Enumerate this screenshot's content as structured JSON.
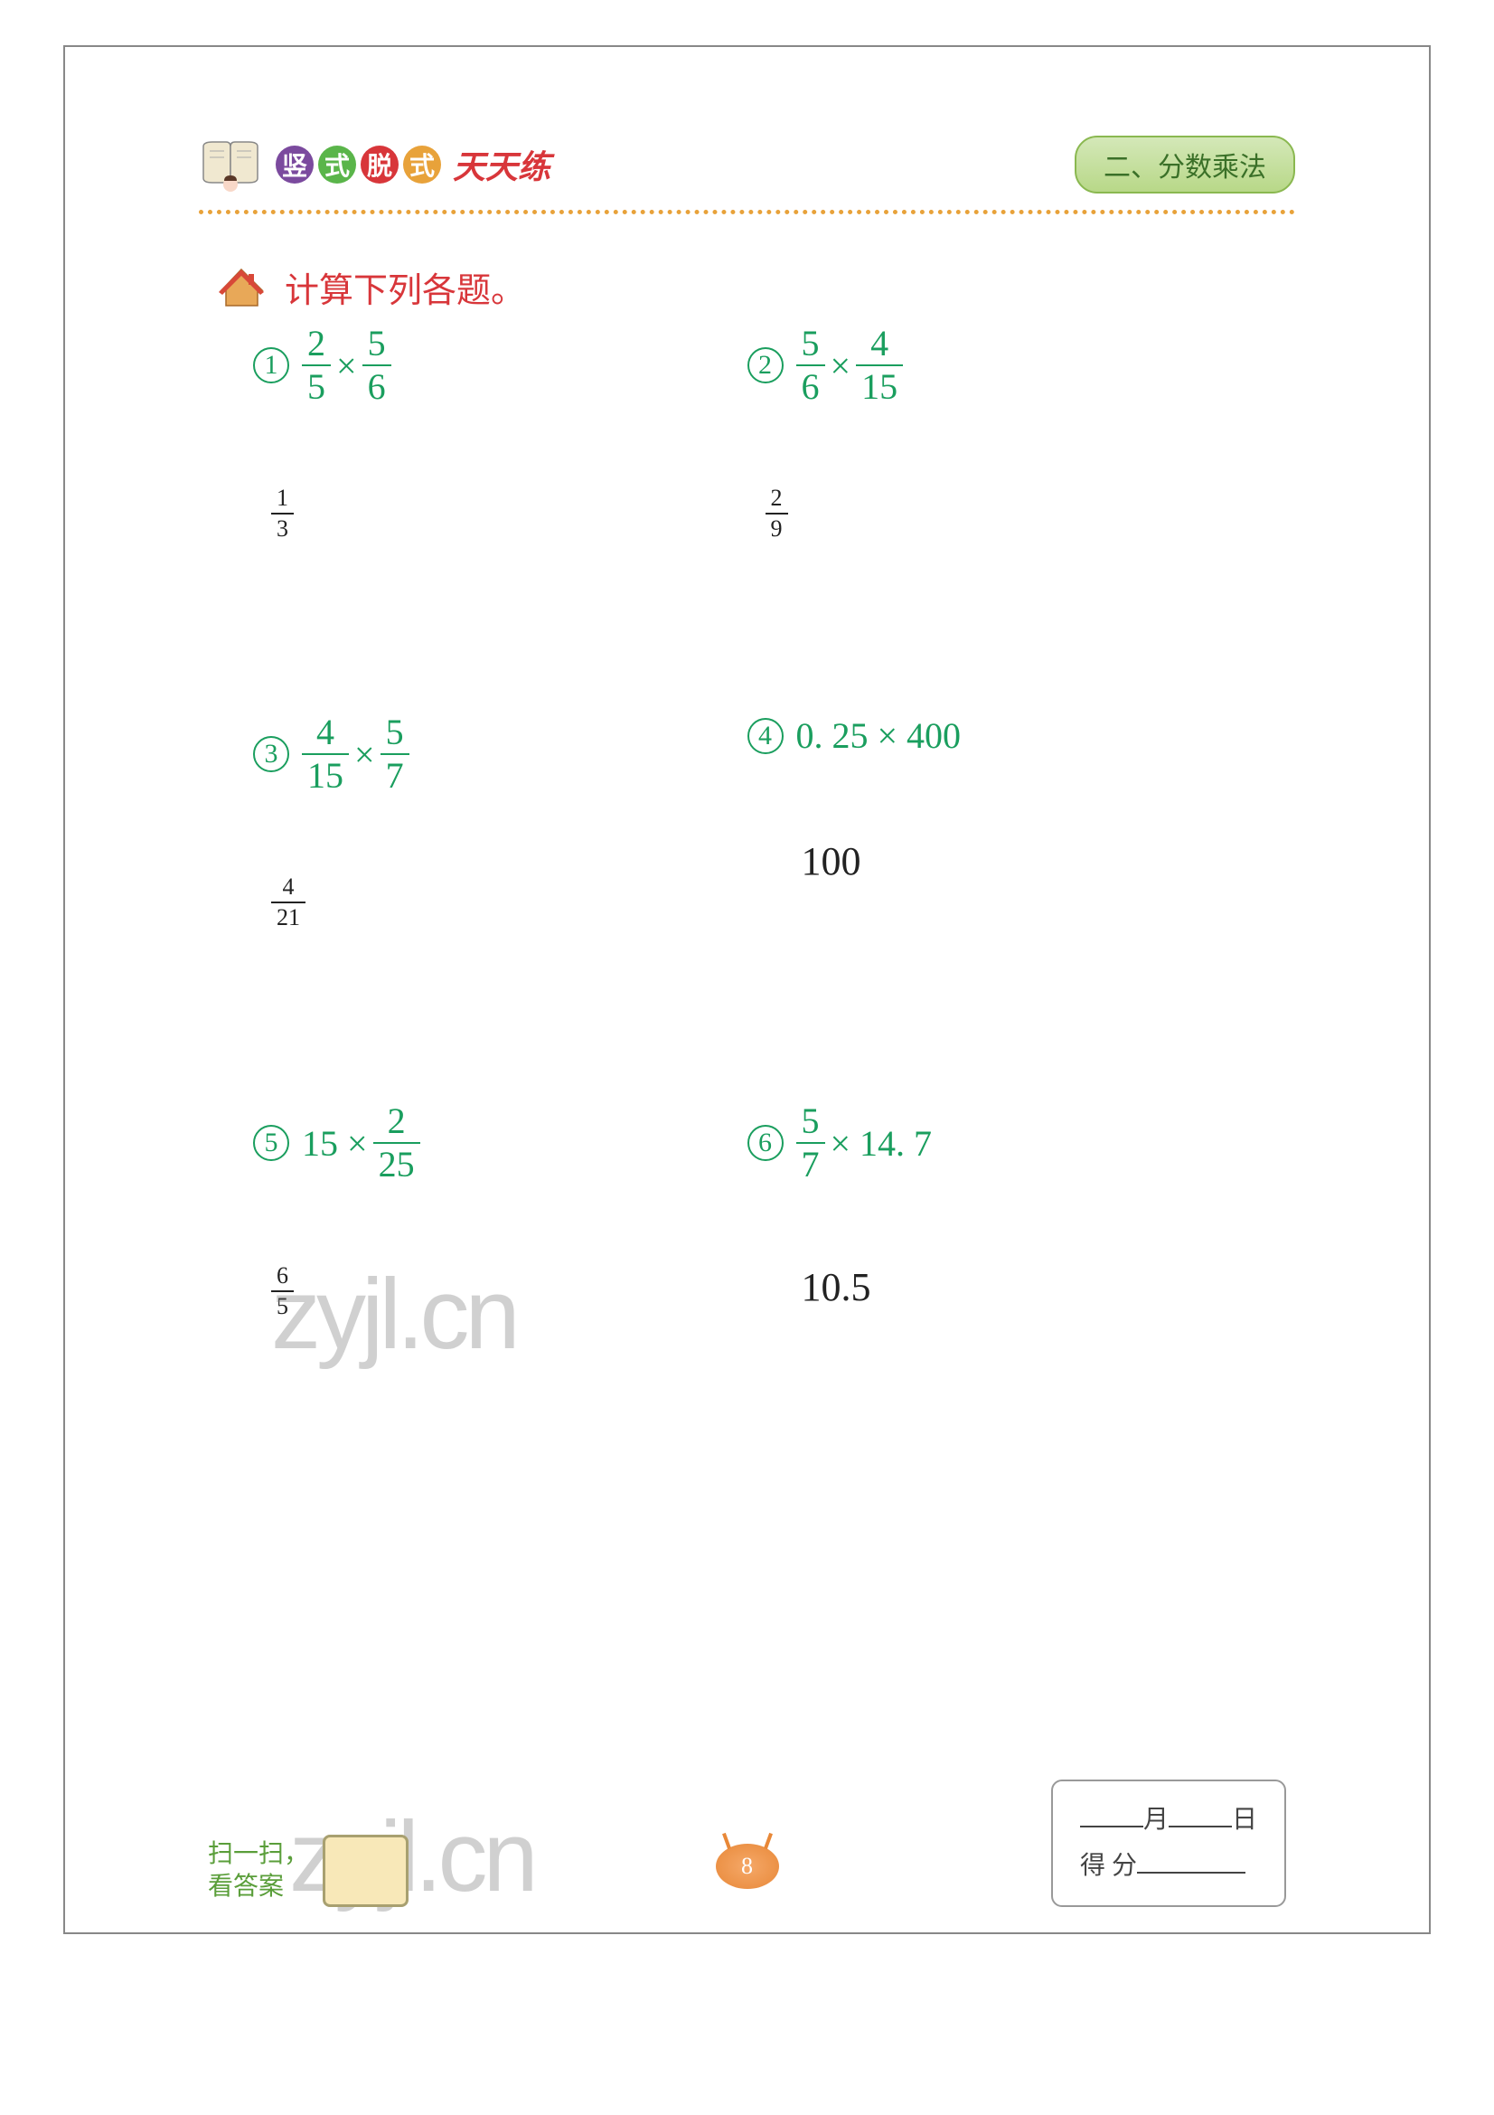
{
  "header": {
    "badge1": "竖",
    "badge2": "式",
    "badge3": "脱",
    "badge4": "式",
    "title_suffix": "天天练",
    "chapter": "二、分数乘法"
  },
  "instruction": "计算下列各题。",
  "problems": [
    {
      "num": "1",
      "type": "frac_x_frac",
      "f1_num": "2",
      "f1_den": "5",
      "f2_num": "5",
      "f2_den": "6",
      "ans_type": "frac",
      "ans_num": "1",
      "ans_den": "3",
      "ans_big": false
    },
    {
      "num": "2",
      "type": "frac_x_frac",
      "f1_num": "5",
      "f1_den": "6",
      "f2_num": "4",
      "f2_den": "15",
      "ans_type": "frac",
      "ans_num": "2",
      "ans_den": "9",
      "ans_big": false
    },
    {
      "num": "3",
      "type": "frac_x_frac",
      "f1_num": "4",
      "f1_den": "15",
      "f2_num": "5",
      "f2_den": "7",
      "ans_type": "frac",
      "ans_num": "4",
      "ans_den": "21",
      "ans_big": false
    },
    {
      "num": "4",
      "type": "dec_x_int",
      "a": "0. 25",
      "b": "400",
      "ans_type": "plain",
      "ans": "100",
      "ans_big": true
    },
    {
      "num": "5",
      "type": "int_x_frac",
      "a": "15",
      "f_num": "2",
      "f_den": "25",
      "ans_type": "frac",
      "ans_num": "6",
      "ans_den": "5",
      "ans_big": false
    },
    {
      "num": "6",
      "type": "frac_x_dec",
      "f_num": "5",
      "f_den": "7",
      "b": "14. 7",
      "ans_type": "plain",
      "ans": "10.5",
      "ans_big": true
    }
  ],
  "watermark": "zyjl.cn",
  "footer": {
    "scan_line1": "扫一扫，",
    "scan_line2": "看答案",
    "page_num": "8",
    "month_label": "月",
    "day_label": "日",
    "score_label": "得 分"
  },
  "colors": {
    "problem_green": "#1a9e5e",
    "instruction_red": "#d8363a",
    "dotted_orange": "#e8a23a",
    "chapter_green": "#3a7028"
  }
}
